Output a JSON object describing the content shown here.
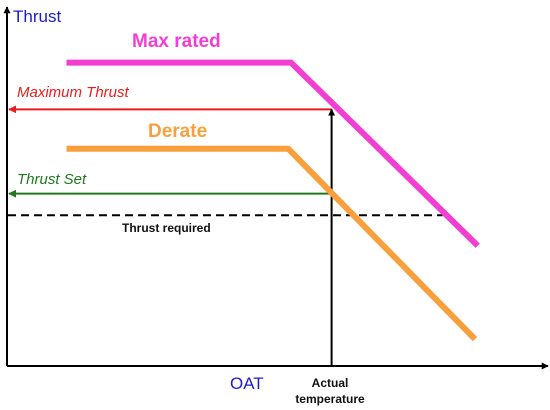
{
  "chart_data": {
    "type": "line",
    "title": "",
    "ylabel": "Thrust",
    "xlabel": "OAT",
    "x_marker_label": [
      "Actual",
      "temperature"
    ],
    "xlim": [
      0,
      100
    ],
    "ylim": [
      0,
      100
    ],
    "grid": false,
    "series": [
      {
        "name": "Max rated",
        "color": "#f23fd2",
        "x": [
          11,
          52.5,
          87
        ],
        "y": [
          84.5,
          84.5,
          33.5
        ]
      },
      {
        "name": "Derate",
        "color": "#f9a03c",
        "x": [
          11,
          52,
          86.5
        ],
        "y": [
          60.5,
          60.5,
          7.5
        ]
      }
    ],
    "reference_lines": [
      {
        "label": "Maximum Thrust",
        "color": "#ee1c1c",
        "y": 71.5,
        "x_end": 60,
        "arrow": "left"
      },
      {
        "label": "Thrust Set",
        "color": "#1f7a1f",
        "y": 48,
        "x_end": 60,
        "arrow": "left"
      }
    ],
    "required_line": {
      "label": "Thrust required",
      "color": "#000000",
      "style": "dashed",
      "y": 42,
      "x_end": 80.5
    },
    "actual_temperature": {
      "x": 60,
      "y_top": 71.5
    }
  }
}
